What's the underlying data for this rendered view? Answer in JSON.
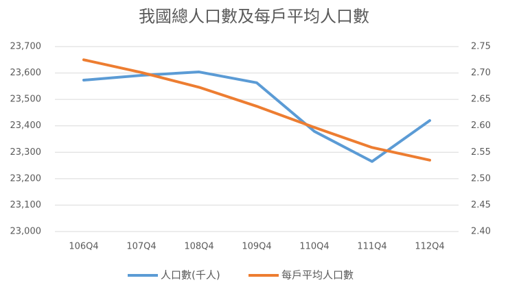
{
  "chart_data": {
    "type": "line",
    "title": "我國總人口數及每戶平均人口數",
    "categories": [
      "106Q4",
      "107Q4",
      "108Q4",
      "109Q4",
      "110Q4",
      "111Q4",
      "112Q4"
    ],
    "series": [
      {
        "name": "人口數(千人)",
        "color": "#5b9bd5",
        "values": [
          23573,
          23591,
          23604,
          23563,
          23379,
          23265,
          23420
        ]
      },
      {
        "name": "每戶平均人口數",
        "color": "#ed7d31",
        "axis": "y2",
        "values": [
          2.725,
          2.701,
          2.673,
          2.637,
          2.597,
          2.559,
          2.535
        ]
      }
    ],
    "ylim": [
      23000,
      23700
    ],
    "yticks": [
      {
        "value": 23000,
        "label": "23,000"
      },
      {
        "value": 23100,
        "label": "23,100"
      },
      {
        "value": 23200,
        "label": "23,200"
      },
      {
        "value": 23300,
        "label": "23,300"
      },
      {
        "value": 23400,
        "label": "23,400"
      },
      {
        "value": 23500,
        "label": "23,500"
      },
      {
        "value": 23600,
        "label": "23,600"
      },
      {
        "value": 23700,
        "label": "23,700"
      }
    ],
    "y2lim": [
      2.4,
      2.75
    ],
    "y2ticks": [
      {
        "value": 2.4,
        "label": "2.40"
      },
      2.45,
      {
        "value": 2.5,
        "label": "2.50"
      },
      2.55,
      {
        "value": 2.6,
        "label": "2.60"
      },
      2.65,
      {
        "value": 2.7,
        "label": "2.70"
      },
      2.75
    ],
    "grid": true,
    "legend": "bottom"
  }
}
